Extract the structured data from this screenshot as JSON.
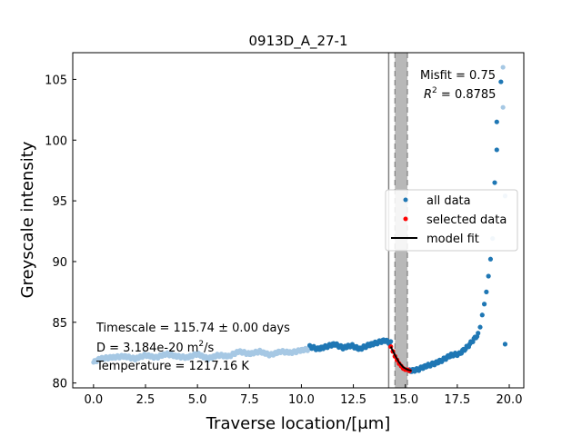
{
  "chart_data": {
    "type": "scatter",
    "title": "0913D_A_27-1",
    "xlabel": "Traverse location/[μm]",
    "ylabel": "Greyscale intensity",
    "xlim": [
      -1.0,
      20.7
    ],
    "ylim": [
      79.6,
      107.2
    ],
    "xticks": [
      0.0,
      2.5,
      5.0,
      7.5,
      10.0,
      12.5,
      15.0,
      17.5,
      20.0
    ],
    "xtick_labels": [
      "0.0",
      "2.5",
      "5.0",
      "7.5",
      "10.0",
      "12.5",
      "15.0",
      "17.5",
      "20.0"
    ],
    "yticks": [
      80,
      85,
      90,
      95,
      100,
      105
    ],
    "ytick_labels": [
      "80",
      "85",
      "90",
      "95",
      "100",
      "105"
    ],
    "grid": false,
    "legend_position": "center-right",
    "colors": {
      "all_data": "#1f77b4",
      "excluded_data": "#a6c8e4",
      "selected_data": "#ff0000",
      "model_fit": "#000000",
      "band": "#b0b0b0",
      "band_lines": "#7f7f7f"
    },
    "shaded_band": {
      "x_outer": [
        14.2,
        15.1
      ],
      "x_inner": [
        14.5,
        15.1
      ]
    },
    "annotations": {
      "misfit": "Misfit = 0.75",
      "r2_label": "R",
      "r2_sup": "2",
      "r2_value": " = 0.8785",
      "timescale": "Timescale = 115.74 ± 0.00 days",
      "d_label": "D = 3.184e-20 m",
      "d_sup": "2",
      "d_unit": "/s",
      "temperature": "Temperature = 1217.16 K"
    },
    "series": [
      {
        "name": "all data",
        "segments": [
          {
            "style": "excluded",
            "x_range": [
              0.0,
              10.4
            ],
            "y_profile": [
              [
                0.0,
                81.7
              ],
              [
                0.3,
                82.0
              ],
              [
                0.8,
                82.1
              ],
              [
                1.5,
                82.2
              ],
              [
                2.0,
                82.0
              ],
              [
                2.5,
                82.3
              ],
              [
                3.0,
                82.1
              ],
              [
                3.5,
                82.4
              ],
              [
                4.0,
                82.2
              ],
              [
                4.5,
                82.1
              ],
              [
                5.0,
                82.4
              ],
              [
                5.5,
                82.0
              ],
              [
                6.0,
                82.3
              ],
              [
                6.5,
                82.2
              ],
              [
                7.0,
                82.6
              ],
              [
                7.5,
                82.4
              ],
              [
                8.0,
                82.6
              ],
              [
                8.5,
                82.3
              ],
              [
                9.0,
                82.6
              ],
              [
                9.5,
                82.5
              ],
              [
                10.0,
                82.7
              ],
              [
                10.4,
                82.8
              ]
            ]
          },
          {
            "style": "normal",
            "x_range": [
              10.4,
              14.3
            ],
            "y_profile": [
              [
                10.4,
                83.0
              ],
              [
                10.8,
                82.8
              ],
              [
                11.2,
                83.0
              ],
              [
                11.6,
                83.2
              ],
              [
                12.0,
                82.9
              ],
              [
                12.4,
                83.1
              ],
              [
                12.8,
                82.8
              ],
              [
                13.2,
                83.1
              ],
              [
                13.6,
                83.3
              ],
              [
                14.0,
                83.5
              ],
              [
                14.3,
                83.3
              ]
            ]
          },
          {
            "style": "normal",
            "x_range": [
              15.2,
              18.5
            ],
            "y_profile": [
              [
                15.2,
                81.0
              ],
              [
                15.6,
                81.1
              ],
              [
                16.0,
                81.4
              ],
              [
                16.4,
                81.6
              ],
              [
                16.8,
                81.9
              ],
              [
                17.2,
                82.3
              ],
              [
                17.6,
                82.4
              ],
              [
                18.0,
                83.0
              ],
              [
                18.5,
                84.0
              ]
            ]
          }
        ],
        "upper_points": [
          {
            "x": 18.6,
            "y": 84.6
          },
          {
            "x": 18.7,
            "y": 85.6
          },
          {
            "x": 18.8,
            "y": 86.5
          },
          {
            "x": 18.9,
            "y": 87.5
          },
          {
            "x": 19.0,
            "y": 88.8
          },
          {
            "x": 19.1,
            "y": 90.2
          },
          {
            "x": 19.3,
            "y": 96.5
          },
          {
            "x": 19.4,
            "y": 101.5
          },
          {
            "x": 19.4,
            "y": 99.2
          },
          {
            "x": 19.6,
            "y": 104.8
          },
          {
            "x": 19.8,
            "y": 83.2
          }
        ],
        "upper_points_excluded": [
          {
            "x": 19.2,
            "y": 91.9
          },
          {
            "x": 19.7,
            "y": 106.0
          },
          {
            "x": 19.7,
            "y": 102.7
          },
          {
            "x": 19.8,
            "y": 95.4
          }
        ]
      },
      {
        "name": "selected data",
        "points": [
          {
            "x": 14.3,
            "y": 83.0
          },
          {
            "x": 14.4,
            "y": 82.6
          },
          {
            "x": 14.5,
            "y": 82.2
          },
          {
            "x": 14.6,
            "y": 81.9
          },
          {
            "x": 14.7,
            "y": 81.6
          },
          {
            "x": 14.8,
            "y": 81.4
          },
          {
            "x": 14.9,
            "y": 81.2
          },
          {
            "x": 15.0,
            "y": 81.1
          },
          {
            "x": 15.1,
            "y": 81.1
          },
          {
            "x": 15.2,
            "y": 81.0
          }
        ]
      },
      {
        "name": "model fit",
        "points": [
          {
            "x": 14.3,
            "y": 83.0
          },
          {
            "x": 14.5,
            "y": 82.3
          },
          {
            "x": 14.7,
            "y": 81.7
          },
          {
            "x": 14.9,
            "y": 81.3
          },
          {
            "x": 15.1,
            "y": 81.1
          },
          {
            "x": 15.3,
            "y": 81.0
          }
        ]
      }
    ]
  }
}
